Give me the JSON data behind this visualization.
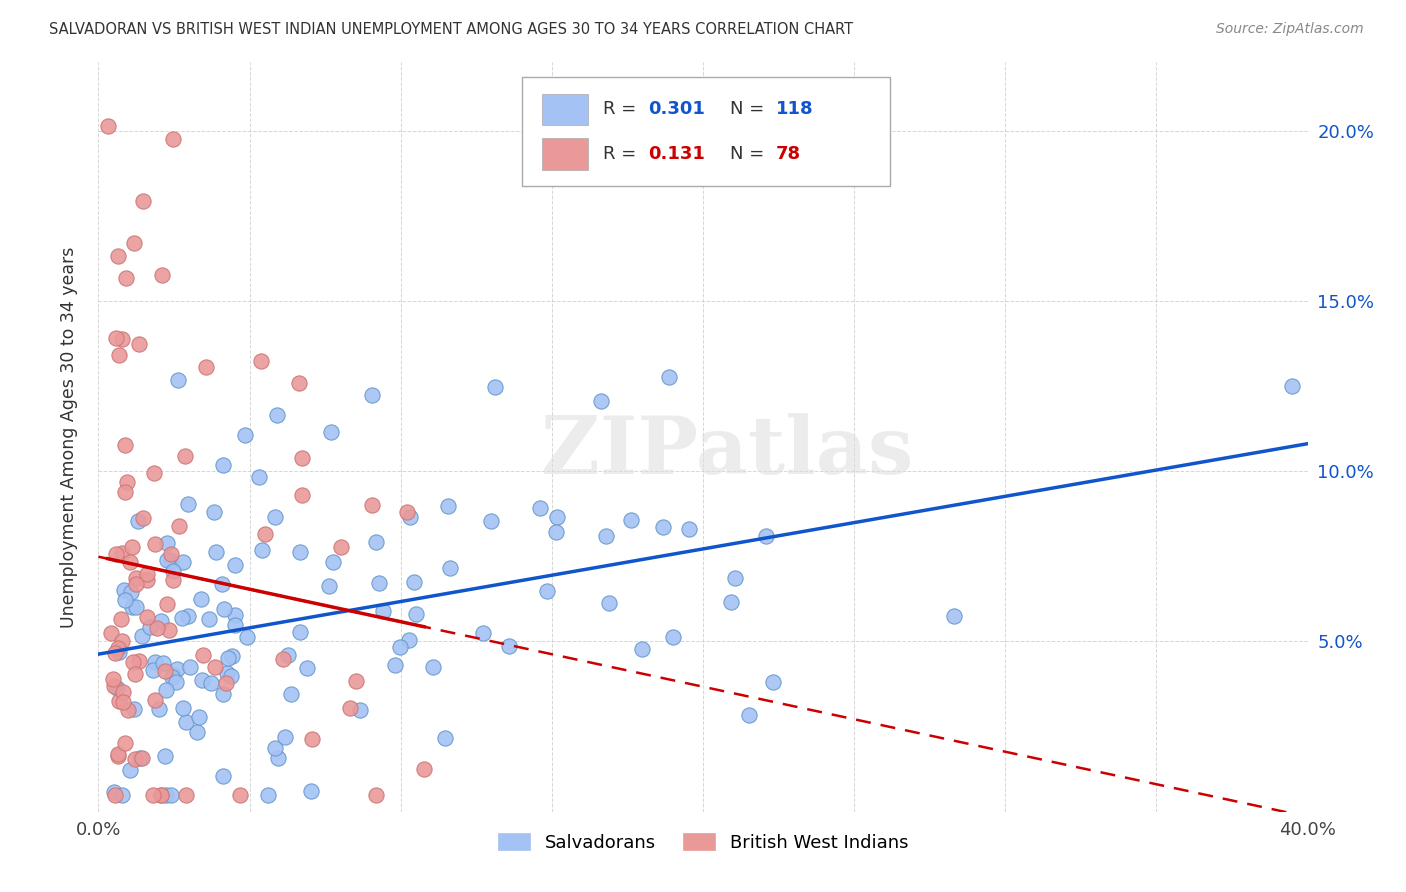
{
  "title": "SALVADORAN VS BRITISH WEST INDIAN UNEMPLOYMENT AMONG AGES 30 TO 34 YEARS CORRELATION CHART",
  "source": "Source: ZipAtlas.com",
  "ylabel": "Unemployment Among Ages 30 to 34 years",
  "xlim": [
    0.0,
    0.4
  ],
  "ylim": [
    0.0,
    0.22
  ],
  "xticks": [
    0.0,
    0.05,
    0.1,
    0.15,
    0.2,
    0.25,
    0.3,
    0.35,
    0.4
  ],
  "xtick_labels": [
    "0.0%",
    "",
    "",
    "",
    "",
    "",
    "",
    "",
    "40.0%"
  ],
  "yticks": [
    0.0,
    0.05,
    0.1,
    0.15,
    0.2
  ],
  "ytick_labels": [
    "",
    "5.0%",
    "10.0%",
    "15.0%",
    "20.0%"
  ],
  "blue_R": 0.301,
  "blue_N": 118,
  "pink_R": 0.131,
  "pink_N": 78,
  "blue_color": "#a4c2f4",
  "pink_color": "#ea9999",
  "blue_line_color": "#1155cc",
  "pink_line_color": "#cc0000",
  "watermark": "ZIPatlas",
  "blue_seed": 77,
  "pink_seed": 55
}
